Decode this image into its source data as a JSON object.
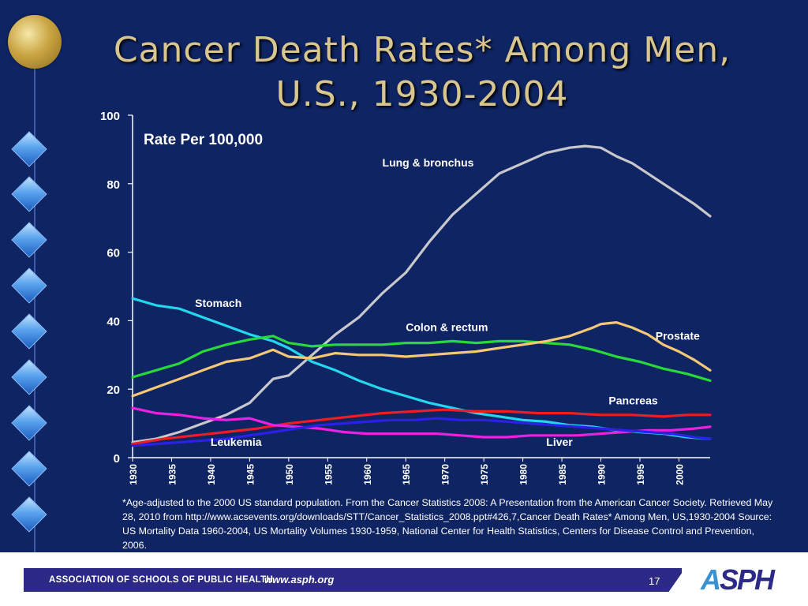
{
  "slide": {
    "title_line1": "Cancer Death Rates* Among Men,",
    "title_line2": "U.S., 1930-2004",
    "footnote": "*Age-adjusted to the 2000 US standard population. From the Cancer Statistics 2008: A Presentation from the American Cancer Society. Retrieved May 28, 2010 from http://www.acsevents.org/downloads/STT/Cancer_Statistics_2008.ppt#426,7,Cancer Death Rates* Among Men, US,1930-2004  Source:  US Mortality Data 1960-2004, US Mortality Volumes 1930-1959, National Center for Health Statistics, Centers for Disease Control and Prevention, 2006."
  },
  "footer": {
    "org": "ASSOCIATION OF SCHOOLS OF PUBLIC HEALTH",
    "url": "www.asph.org",
    "page": "17",
    "logo_a": "A",
    "logo_rest": "SPH"
  },
  "colors": {
    "background": "#0f2463",
    "title": "#d9c68f",
    "text": "#ffffff"
  },
  "chart_data": {
    "type": "line",
    "ylabel": "Rate Per 100,000",
    "ylim": [
      0,
      100
    ],
    "yticks": [
      0,
      20,
      40,
      60,
      80,
      100
    ],
    "xlim": [
      1930,
      2004
    ],
    "xticks": [
      1930,
      1935,
      1940,
      1945,
      1950,
      1955,
      1960,
      1965,
      1970,
      1975,
      1980,
      1985,
      1990,
      1995,
      2000
    ],
    "grid": false,
    "series": [
      {
        "name": "Lung & bronchus",
        "color": "#c8c8cc",
        "label_at": [
          1962,
          85
        ],
        "points": [
          [
            1930,
            4.5
          ],
          [
            1933,
            5.5
          ],
          [
            1936,
            7.5
          ],
          [
            1939,
            10
          ],
          [
            1942,
            12.5
          ],
          [
            1945,
            16
          ],
          [
            1948,
            23
          ],
          [
            1950,
            24
          ],
          [
            1953,
            30
          ],
          [
            1956,
            36
          ],
          [
            1959,
            41
          ],
          [
            1962,
            48
          ],
          [
            1965,
            54
          ],
          [
            1968,
            63
          ],
          [
            1971,
            71
          ],
          [
            1974,
            77
          ],
          [
            1977,
            83
          ],
          [
            1980,
            86
          ],
          [
            1983,
            89
          ],
          [
            1986,
            90.5
          ],
          [
            1988,
            91
          ],
          [
            1990,
            90.5
          ],
          [
            1992,
            88
          ],
          [
            1994,
            86
          ],
          [
            1996,
            83
          ],
          [
            1998,
            80
          ],
          [
            2000,
            77
          ],
          [
            2002,
            74
          ],
          [
            2004,
            70.5
          ]
        ]
      },
      {
        "name": "Stomach",
        "color": "#24d6ee",
        "label_at": [
          1938,
          44
        ],
        "points": [
          [
            1930,
            46.5
          ],
          [
            1933,
            44.5
          ],
          [
            1936,
            43.5
          ],
          [
            1939,
            41
          ],
          [
            1942,
            38.5
          ],
          [
            1945,
            36
          ],
          [
            1948,
            34
          ],
          [
            1950,
            32
          ],
          [
            1953,
            28
          ],
          [
            1956,
            25.5
          ],
          [
            1959,
            22.5
          ],
          [
            1962,
            20
          ],
          [
            1965,
            18
          ],
          [
            1968,
            16
          ],
          [
            1971,
            14.5
          ],
          [
            1974,
            13
          ],
          [
            1977,
            12
          ],
          [
            1980,
            11
          ],
          [
            1983,
            10.5
          ],
          [
            1986,
            9.5
          ],
          [
            1989,
            9
          ],
          [
            1992,
            8
          ],
          [
            1995,
            7.5
          ],
          [
            1998,
            7
          ],
          [
            2001,
            6
          ],
          [
            2004,
            5.5
          ]
        ]
      },
      {
        "name": "Colon & rectum",
        "color": "#27d93a",
        "label_at": [
          1965,
          37
        ],
        "points": [
          [
            1930,
            23.5
          ],
          [
            1933,
            25.5
          ],
          [
            1936,
            27.5
          ],
          [
            1939,
            31
          ],
          [
            1942,
            33
          ],
          [
            1945,
            34.5
          ],
          [
            1948,
            35.5
          ],
          [
            1950,
            33.5
          ],
          [
            1953,
            32.5
          ],
          [
            1956,
            33
          ],
          [
            1959,
            33
          ],
          [
            1962,
            33
          ],
          [
            1965,
            33.5
          ],
          [
            1968,
            33.5
          ],
          [
            1971,
            34
          ],
          [
            1974,
            33.5
          ],
          [
            1977,
            34
          ],
          [
            1980,
            34
          ],
          [
            1983,
            33.5
          ],
          [
            1986,
            33
          ],
          [
            1989,
            31.5
          ],
          [
            1992,
            29.5
          ],
          [
            1995,
            28
          ],
          [
            1998,
            26
          ],
          [
            2001,
            24.5
          ],
          [
            2004,
            22.5
          ]
        ]
      },
      {
        "name": "Prostate",
        "color": "#f4c875",
        "label_at": [
          1997,
          34.5
        ],
        "points": [
          [
            1930,
            18
          ],
          [
            1933,
            20.5
          ],
          [
            1936,
            23
          ],
          [
            1939,
            25.5
          ],
          [
            1942,
            28
          ],
          [
            1945,
            29
          ],
          [
            1948,
            31.5
          ],
          [
            1950,
            29.5
          ],
          [
            1953,
            29
          ],
          [
            1956,
            30.5
          ],
          [
            1959,
            30
          ],
          [
            1962,
            30
          ],
          [
            1965,
            29.5
          ],
          [
            1968,
            30
          ],
          [
            1971,
            30.5
          ],
          [
            1974,
            31
          ],
          [
            1977,
            32
          ],
          [
            1980,
            33
          ],
          [
            1983,
            34
          ],
          [
            1986,
            35.5
          ],
          [
            1989,
            38
          ],
          [
            1990,
            39
          ],
          [
            1992,
            39.5
          ],
          [
            1994,
            38
          ],
          [
            1996,
            36
          ],
          [
            1998,
            33
          ],
          [
            2000,
            31
          ],
          [
            2002,
            28.5
          ],
          [
            2004,
            25.5
          ]
        ]
      },
      {
        "name": "Pancreas",
        "color": "#ee1c24",
        "label_at": [
          1991,
          15.5
        ],
        "points": [
          [
            1930,
            4
          ],
          [
            1934,
            5.5
          ],
          [
            1938,
            6.5
          ],
          [
            1942,
            7.5
          ],
          [
            1946,
            8.5
          ],
          [
            1950,
            10
          ],
          [
            1954,
            11
          ],
          [
            1958,
            12
          ],
          [
            1962,
            13
          ],
          [
            1966,
            13.5
          ],
          [
            1970,
            14
          ],
          [
            1974,
            13.5
          ],
          [
            1978,
            13.5
          ],
          [
            1982,
            13
          ],
          [
            1986,
            13
          ],
          [
            1990,
            12.5
          ],
          [
            1994,
            12.5
          ],
          [
            1998,
            12
          ],
          [
            2001,
            12.5
          ],
          [
            2004,
            12.5
          ]
        ]
      },
      {
        "name": "Leukemia",
        "color": "#ec20e0",
        "label_at": [
          1940,
          3.5
        ],
        "points": [
          [
            1930,
            14.5
          ],
          [
            1933,
            13
          ],
          [
            1936,
            12.5
          ],
          [
            1939,
            11.5
          ],
          [
            1942,
            11
          ],
          [
            1945,
            11.5
          ],
          [
            1948,
            9.5
          ],
          [
            1951,
            9
          ],
          [
            1954,
            8.5
          ],
          [
            1957,
            7.5
          ],
          [
            1960,
            7
          ],
          [
            1963,
            7
          ],
          [
            1966,
            7
          ],
          [
            1969,
            7
          ],
          [
            1972,
            6.5
          ],
          [
            1975,
            6
          ],
          [
            1978,
            6
          ],
          [
            1981,
            6.5
          ],
          [
            1984,
            6.5
          ],
          [
            1987,
            6.5
          ],
          [
            1990,
            7
          ],
          [
            1993,
            7.5
          ],
          [
            1996,
            8
          ],
          [
            1999,
            8
          ],
          [
            2002,
            8.5
          ],
          [
            2004,
            9
          ]
        ]
      },
      {
        "name": "Liver",
        "color": "#2a20e8",
        "label_at": [
          1983,
          3.5
        ],
        "points": [
          [
            1930,
            3.5
          ],
          [
            1933,
            4
          ],
          [
            1936,
            4.5
          ],
          [
            1939,
            5
          ],
          [
            1942,
            5.5
          ],
          [
            1945,
            6.5
          ],
          [
            1948,
            7.5
          ],
          [
            1951,
            8.5
          ],
          [
            1954,
            9.5
          ],
          [
            1957,
            10
          ],
          [
            1960,
            10.5
          ],
          [
            1963,
            11
          ],
          [
            1966,
            11
          ],
          [
            1969,
            11.5
          ],
          [
            1972,
            11
          ],
          [
            1975,
            11
          ],
          [
            1978,
            10.5
          ],
          [
            1981,
            10
          ],
          [
            1984,
            9.5
          ],
          [
            1987,
            9
          ],
          [
            1990,
            8.5
          ],
          [
            1993,
            8
          ],
          [
            1996,
            7.5
          ],
          [
            1999,
            7
          ],
          [
            2002,
            6
          ],
          [
            2004,
            5.5
          ]
        ]
      }
    ]
  }
}
